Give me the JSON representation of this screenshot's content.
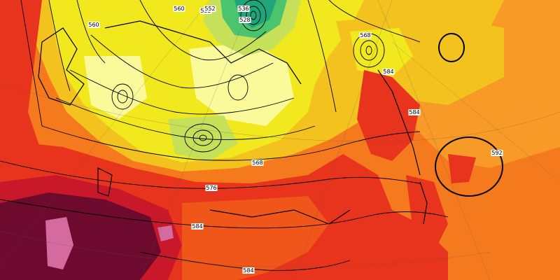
{
  "map": {
    "colors": {
      "deep_maroon": "#6e0a2e",
      "pink_core": "#d46a9e",
      "dark_red": "#c8182a",
      "red": "#e8341c",
      "red_orange": "#f0551a",
      "orange": "#f57a1e",
      "light_orange": "#f79a28",
      "yellow_orange": "#f4c21e",
      "yellow": "#f2e81e",
      "light_yellow": "#fafa9a",
      "yellow_green": "#c6e05a",
      "green": "#4cc46e",
      "teal": "#1ea67a"
    },
    "contour_labels": [
      {
        "id": "c576a",
        "text": "576"
      },
      {
        "id": "c584a",
        "text": "584"
      },
      {
        "id": "c584b",
        "text": "584"
      },
      {
        "id": "c568",
        "text": "568"
      },
      {
        "id": "c552",
        "text": "552"
      },
      {
        "id": "c528",
        "text": "528"
      },
      {
        "id": "c560",
        "text": "560"
      },
      {
        "id": "c536",
        "text": "536"
      },
      {
        "id": "c568b",
        "text": "568"
      },
      {
        "id": "c584c",
        "text": "584"
      },
      {
        "id": "c584d",
        "text": "584"
      },
      {
        "id": "c592",
        "text": "592"
      },
      {
        "id": "c560b",
        "text": "560"
      },
      {
        "id": "c552b",
        "text": "552"
      }
    ]
  }
}
